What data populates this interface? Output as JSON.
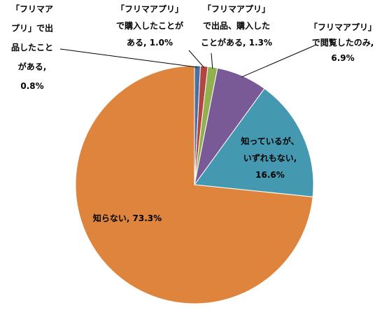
{
  "chart_data": {
    "type": "pie",
    "title": "",
    "legend": "none",
    "slices": [
      {
        "label_lines": [
          "「フリマア",
          "プリ」で出",
          "品したこと",
          "がある,",
          "0.8%"
        ],
        "value": 0.8,
        "color": "#4a6fa5"
      },
      {
        "label_lines": [
          "「フリマアプリ」",
          "で購入したことが",
          "ある, 1.0%"
        ],
        "value": 1.0,
        "color": "#b04542"
      },
      {
        "label_lines": [
          "「フリマアプリ」",
          "で出品、購入した",
          "ことがある, 1.3%"
        ],
        "value": 1.3,
        "color": "#93b050"
      },
      {
        "label_lines": [
          "「フリマアプリ」",
          "で閲覧したのみ,",
          "6.9%"
        ],
        "value": 6.9,
        "color": "#7a5a96"
      },
      {
        "label_lines": [
          "知っているが、",
          "いずれもない,",
          "16.6%"
        ],
        "value": 16.6,
        "color": "#4499b0"
      },
      {
        "label_lines": [
          "知らない, 73.3%"
        ],
        "value": 73.3,
        "color": "#de843d"
      }
    ]
  }
}
